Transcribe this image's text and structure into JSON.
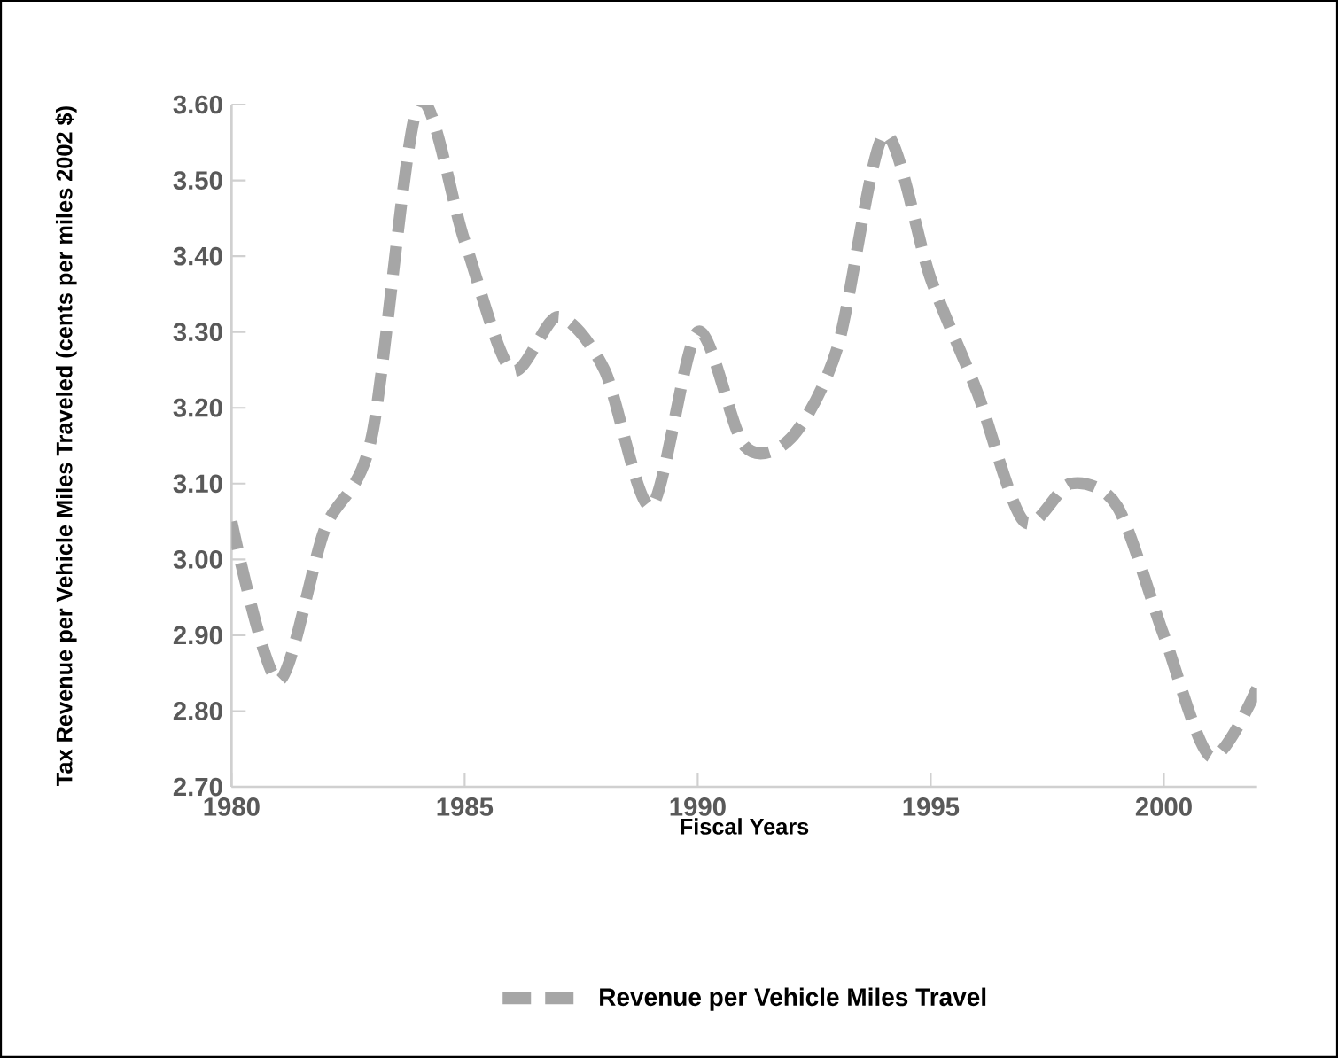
{
  "chart_data": {
    "type": "line",
    "xlabel": "Fiscal Years",
    "ylabel": "Tax Revenue per Vehicle Miles Traveled (cents per miles 2002 $)",
    "x": [
      1980,
      1981,
      1982,
      1983,
      1984,
      1985,
      1986,
      1987,
      1988,
      1989,
      1990,
      1991,
      1992,
      1993,
      1994,
      1995,
      1996,
      1997,
      1998,
      1999,
      2000,
      2001,
      2002
    ],
    "series": [
      {
        "name": "Revenue per Vehicle  Miles Travel",
        "color": "#a6a6a6",
        "values": [
          3.05,
          2.84,
          3.04,
          3.16,
          3.6,
          3.42,
          3.25,
          3.32,
          3.25,
          3.07,
          3.3,
          3.15,
          3.16,
          3.28,
          3.56,
          3.37,
          3.22,
          3.05,
          3.1,
          3.07,
          2.9,
          2.74,
          2.83
        ]
      }
    ],
    "xlim": [
      1980,
      2002
    ],
    "xticks": [
      1980,
      1985,
      1990,
      1995,
      2000
    ],
    "ylim": [
      2.7,
      3.6
    ],
    "yticks": [
      {
        "value": 2.7,
        "label": "2.70"
      },
      {
        "value": 2.8,
        "label": "2.80"
      },
      {
        "value": 2.9,
        "label": "2.90"
      },
      {
        "value": 3.0,
        "label": "3.00"
      },
      {
        "value": 3.1,
        "label": "3.10"
      },
      {
        "value": 3.2,
        "label": "3.20"
      },
      {
        "value": 3.3,
        "label": "3.30"
      },
      {
        "value": 3.4,
        "label": "3.40"
      },
      {
        "value": 3.5,
        "label": "3.50"
      },
      {
        "value": 3.6,
        "label": "3.60"
      }
    ],
    "grid": false,
    "legend": "bottom",
    "marker": "none",
    "line_style": "dashed"
  }
}
